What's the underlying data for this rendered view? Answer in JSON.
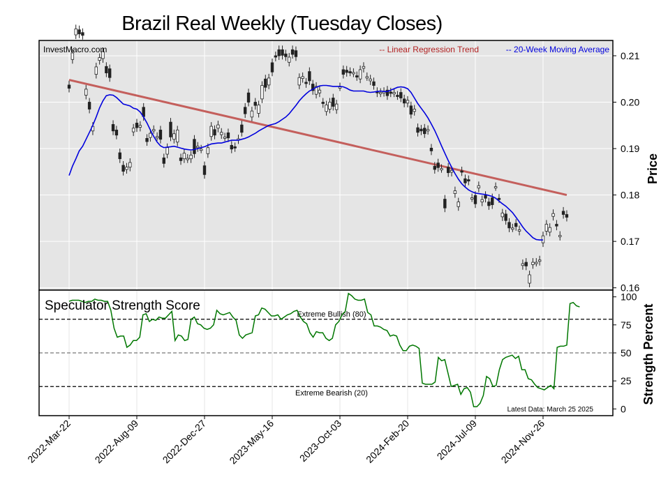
{
  "chart_data": [
    {
      "type": "candlestick",
      "title": "Brazil Real Weekly (Tuesday Closes)",
      "source_label": "InvestMacro.com",
      "ylabel": "Price",
      "ylim": [
        0.1595,
        0.2133
      ],
      "yticks": [
        0.16,
        0.17,
        0.18,
        0.19,
        0.2,
        0.21
      ],
      "ytick_labels": [
        "0.16",
        "0.17",
        "0.18",
        "0.19",
        "0.20",
        "0.21"
      ],
      "xtick_labels": [
        "2022-Mar-22",
        "2022-Aug-09",
        "2022-Dec-27",
        "2023-May-16",
        "2023-Oct-03",
        "2024-Feb-20",
        "2024-Jul-09",
        "2024-Nov-26"
      ],
      "xtick_index": [
        0,
        20,
        40,
        60,
        80,
        100,
        120,
        140
      ],
      "grid": true,
      "legend_position": "top-right",
      "colors": {
        "up": "#ffffff",
        "down": "#222222",
        "trend": "#c0504d",
        "ma": "#0000dd",
        "grid": "#ffffff",
        "background": "#e5e5e5"
      },
      "series": [
        {
          "name": "-- Linear Regression Trend",
          "kind": "trend",
          "start": 0.2048,
          "end": 0.18
        },
        {
          "name": "-- 20-Week Moving Average",
          "kind": "ma",
          "values": [
            0.1842,
            0.1862,
            0.1878,
            0.1895,
            0.1905,
            0.192,
            0.1935,
            0.195,
            0.1968,
            0.1988,
            0.2003,
            0.2014,
            0.2016,
            0.2015,
            0.201,
            0.2003,
            0.1996,
            0.1994,
            0.1992,
            0.1987,
            0.1985,
            0.1979,
            0.1968,
            0.1955,
            0.194,
            0.1926,
            0.1914,
            0.1906,
            0.1902,
            0.1903,
            0.1904,
            0.1905,
            0.1903,
            0.1901,
            0.1899,
            0.1898,
            0.1897,
            0.1898,
            0.19,
            0.1902,
            0.1904,
            0.1907,
            0.191,
            0.1911,
            0.1912,
            0.1912,
            0.1914,
            0.1916,
            0.1918,
            0.1918,
            0.1918,
            0.192,
            0.1922,
            0.1925,
            0.1929,
            0.1933,
            0.1938,
            0.1942,
            0.1946,
            0.195,
            0.1952,
            0.1954,
            0.1958,
            0.1963,
            0.1968,
            0.1975,
            0.1984,
            0.1993,
            0.2003,
            0.2011,
            0.2018,
            0.2024,
            0.2028,
            0.2032,
            0.2035,
            0.2036,
            0.2036,
            0.2035,
            0.2034,
            0.2034,
            0.2034,
            0.2033,
            0.203,
            0.2026,
            0.2024,
            0.2024,
            0.2024,
            0.2024,
            0.2022,
            0.2021,
            0.2022,
            0.2023,
            0.2024,
            0.2023,
            0.2023,
            0.2026,
            0.2029,
            0.2032,
            0.2033,
            0.2032,
            0.2029,
            0.2021,
            0.2009,
            0.1997,
            0.1987,
            0.1977,
            0.1966,
            0.1953,
            0.1939,
            0.1923,
            0.1906,
            0.189,
            0.1874,
            0.186,
            0.1846,
            0.1834,
            0.1824,
            0.1817,
            0.1811,
            0.1807,
            0.1804,
            0.1803,
            0.1802,
            0.1801,
            0.1799,
            0.1797,
            0.1793,
            0.1787,
            0.1781,
            0.1776,
            0.1769,
            0.1762,
            0.1752,
            0.1742,
            0.1731,
            0.1722,
            0.1715,
            0.1708,
            0.1704,
            0.1703,
            0.1703
          ]
        }
      ],
      "candles": [
        [
          0.2037,
          0.203
        ],
        [
          0.2092,
          0.2106
        ],
        [
          0.2145,
          0.2158
        ],
        [
          0.2156,
          0.2147
        ],
        [
          0.215,
          0.2144
        ],
        [
          0.2015,
          0.2028
        ],
        [
          0.2,
          0.1985
        ],
        [
          0.1938,
          0.1948
        ],
        [
          0.206,
          0.2076
        ],
        [
          0.209,
          0.2096
        ],
        [
          0.2094,
          0.2109
        ],
        [
          0.2077,
          0.2063
        ],
        [
          0.2072,
          0.2053
        ],
        [
          0.1952,
          0.1938
        ],
        [
          0.194,
          0.1929
        ],
        [
          0.1891,
          0.1878
        ],
        [
          0.1864,
          0.1851
        ],
        [
          0.1855,
          0.186
        ],
        [
          0.186,
          0.187
        ],
        [
          0.1936,
          0.1944
        ],
        [
          0.1955,
          0.1945
        ],
        [
          0.1946,
          0.195
        ],
        [
          0.1989,
          0.1969
        ],
        [
          0.1922,
          0.1915
        ],
        [
          0.1924,
          0.1933
        ],
        [
          0.1941,
          0.1941
        ],
        [
          0.1926,
          0.1926
        ],
        [
          0.194,
          0.192
        ],
        [
          0.188,
          0.1868
        ],
        [
          0.1888,
          0.1902
        ],
        [
          0.1957,
          0.1925
        ],
        [
          0.192,
          0.1932
        ],
        [
          0.1914,
          0.194
        ],
        [
          0.188,
          0.1874
        ],
        [
          0.1878,
          0.189
        ],
        [
          0.1878,
          0.1879
        ],
        [
          0.1878,
          0.1886
        ],
        [
          0.192,
          0.1889
        ],
        [
          0.1902,
          0.1905
        ],
        [
          0.1899,
          0.1899
        ],
        [
          0.1863,
          0.1844
        ],
        [
          0.1889,
          0.1902
        ],
        [
          0.1926,
          0.1948
        ],
        [
          0.1941,
          0.1929
        ],
        [
          0.1944,
          0.1951
        ],
        [
          0.193,
          0.1935
        ],
        [
          0.1925,
          0.1925
        ],
        [
          0.1934,
          0.1923
        ],
        [
          0.1907,
          0.1899
        ],
        [
          0.1904,
          0.1902
        ],
        [
          0.1919,
          0.1921
        ],
        [
          0.1951,
          0.1935
        ],
        [
          0.1989,
          0.1975
        ],
        [
          0.202,
          0.2
        ],
        [
          0.1968,
          0.1981
        ],
        [
          0.2,
          0.1993
        ],
        [
          0.1976,
          0.1994
        ],
        [
          0.2007,
          0.2036
        ],
        [
          0.205,
          0.2032
        ],
        [
          0.2037,
          0.2052
        ],
        [
          0.2085,
          0.2065
        ],
        [
          0.21,
          0.2097
        ],
        [
          0.2113,
          0.21
        ],
        [
          0.2113,
          0.2101
        ],
        [
          0.2104,
          0.2098
        ],
        [
          0.2086,
          0.2097
        ],
        [
          0.2113,
          0.2103
        ],
        [
          0.2111,
          0.2098
        ],
        [
          0.2037,
          0.2053
        ],
        [
          0.2051,
          0.2055
        ],
        [
          0.2043,
          0.204
        ],
        [
          0.2066,
          0.2046
        ],
        [
          0.2039,
          0.2025
        ],
        [
          0.2017,
          0.2034
        ],
        [
          0.202,
          0.2026
        ],
        [
          0.2,
          0.1997
        ],
        [
          0.198,
          0.1994
        ],
        [
          0.1985,
          0.2
        ],
        [
          0.2009,
          0.1991
        ],
        [
          0.1984,
          0.1996
        ],
        [
          0.2033,
          0.2033
        ],
        [
          0.207,
          0.206
        ],
        [
          0.2069,
          0.2064
        ],
        [
          0.2066,
          0.2065
        ],
        [
          0.2063,
          0.2064
        ],
        [
          0.2057,
          0.2055
        ],
        [
          0.205,
          0.207
        ],
        [
          0.2073,
          0.2077
        ],
        [
          0.2055,
          0.2055
        ],
        [
          0.2046,
          0.205
        ],
        [
          0.2044,
          0.2036
        ],
        [
          0.2023,
          0.202
        ],
        [
          0.202,
          0.2021
        ],
        [
          0.2021,
          0.2023
        ],
        [
          0.2026,
          0.2014
        ],
        [
          0.2022,
          0.202
        ],
        [
          0.202,
          0.2021
        ],
        [
          0.2015,
          0.2014
        ],
        [
          0.2021,
          0.2009
        ],
        [
          0.2007,
          0.1998
        ],
        [
          0.1998,
          0.2004
        ],
        [
          0.1992,
          0.1974
        ],
        [
          0.198,
          0.1985
        ],
        [
          0.1945,
          0.1935
        ],
        [
          0.1942,
          0.1938
        ],
        [
          0.1944,
          0.1932
        ],
        [
          0.1939,
          0.1941
        ],
        [
          0.1901,
          0.1895
        ],
        [
          0.1862,
          0.1855
        ],
        [
          0.1869,
          0.1859
        ],
        [
          0.1857,
          0.1857
        ],
        [
          0.1791,
          0.1772
        ],
        [
          0.186,
          0.1848
        ],
        [
          0.1849,
          0.1853
        ],
        [
          0.1803,
          0.1809
        ],
        [
          0.1775,
          0.1785
        ],
        [
          0.1852,
          0.185
        ],
        [
          0.1835,
          0.1826
        ],
        [
          0.1833,
          0.183
        ],
        [
          0.1794,
          0.1794
        ],
        [
          0.1799,
          0.1781
        ],
        [
          0.1815,
          0.182
        ],
        [
          0.1785,
          0.179
        ],
        [
          0.1799,
          0.1793
        ],
        [
          0.1785,
          0.1777
        ],
        [
          0.1794,
          0.1779
        ],
        [
          0.1818,
          0.1818
        ],
        [
          0.1793,
          0.1792
        ],
        [
          0.1753,
          0.1761
        ],
        [
          0.1759,
          0.1745
        ],
        [
          0.1741,
          0.1729
        ],
        [
          0.1729,
          0.1729
        ],
        [
          0.1739,
          0.1732
        ],
        [
          0.1722,
          0.1725
        ],
        [
          0.1648,
          0.1652
        ],
        [
          0.1655,
          0.1647
        ],
        [
          0.161,
          0.1628
        ],
        [
          0.165,
          0.1655
        ],
        [
          0.1655,
          0.1655
        ],
        [
          0.1657,
          0.166
        ],
        [
          0.1697,
          0.1712
        ],
        [
          0.1722,
          0.1737
        ],
        [
          0.172,
          0.173
        ],
        [
          0.1754,
          0.176
        ],
        [
          0.1737,
          0.1733
        ],
        [
          0.1711,
          0.1713
        ],
        [
          0.1765,
          0.1758
        ],
        [
          0.1758,
          0.1752
        ]
      ]
    },
    {
      "type": "line",
      "title": "Speculator Strength Score",
      "ylabel": "Strength Percent",
      "ylim": [
        -6,
        106
      ],
      "yticks": [
        0,
        25,
        50,
        75,
        100
      ],
      "ytick_labels": [
        "0",
        "25",
        "50",
        "75",
        "100"
      ],
      "reference_lines": [
        {
          "value": 80,
          "label": "Extreme Bullish (80)",
          "style": "dashed",
          "color": "#000000"
        },
        {
          "value": 50,
          "label": "",
          "style": "dashed",
          "color": "#777777"
        },
        {
          "value": 20,
          "label": "Extreme Bearish (20)",
          "style": "dashed",
          "color": "#000000"
        }
      ],
      "footnote": "Latest Data: March 25 2025",
      "colors": {
        "line": "#007700"
      },
      "values": [
        96,
        97,
        97,
        97,
        96,
        95,
        96,
        96,
        98,
        97,
        97,
        96,
        96,
        88,
        72,
        64,
        65,
        65,
        55,
        57,
        61,
        61,
        64,
        84,
        85,
        78,
        80,
        79,
        82,
        81,
        81,
        84,
        87,
        61,
        66,
        65,
        61,
        62,
        80,
        82,
        76,
        75,
        72,
        71,
        72,
        75,
        88,
        85,
        84,
        85,
        86,
        82,
        79,
        66,
        63,
        66,
        67,
        68,
        83,
        84,
        90,
        89,
        86,
        83,
        83,
        84,
        80,
        82,
        84,
        85,
        87,
        88,
        82,
        78,
        76,
        68,
        64,
        69,
        68,
        68,
        63,
        61,
        63,
        75,
        78,
        84,
        87,
        103,
        101,
        98,
        97,
        97,
        98,
        86,
        84,
        74,
        74,
        73,
        71,
        70,
        65,
        66,
        65,
        57,
        52,
        52,
        56,
        57,
        56,
        54,
        23,
        22,
        22,
        22,
        24,
        46,
        43,
        44,
        32,
        20,
        21,
        22,
        13,
        18,
        19,
        15,
        2,
        2,
        5,
        12,
        29,
        27,
        20,
        21,
        35,
        44,
        46,
        47,
        48,
        45,
        47,
        35,
        35,
        27,
        26,
        22,
        19,
        18,
        17,
        19,
        21,
        18,
        55,
        56,
        56,
        57,
        94,
        95,
        92,
        91
      ]
    }
  ]
}
